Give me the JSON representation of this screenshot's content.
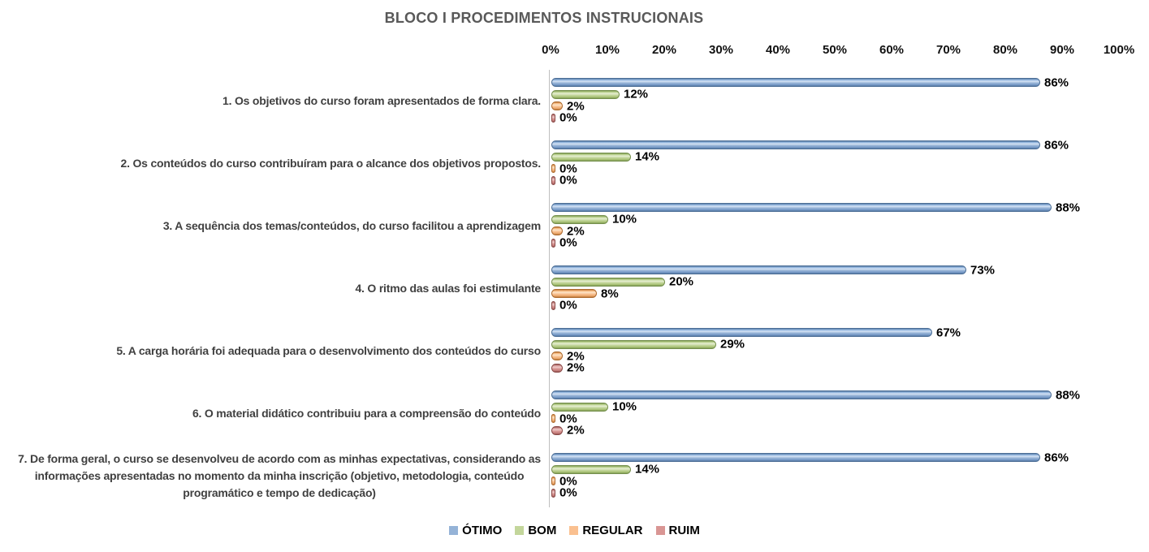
{
  "title": "BLOCO I PROCEDIMENTOS INSTRUCIONAIS",
  "chart_data": {
    "type": "bar",
    "orientation": "horizontal",
    "title": "BLOCO I PROCEDIMENTOS INSTRUCIONAIS",
    "xlabel": "",
    "ylabel": "",
    "xlim": [
      0,
      100
    ],
    "x_ticks": [
      "0%",
      "10%",
      "20%",
      "30%",
      "40%",
      "50%",
      "60%",
      "70%",
      "80%",
      "90%",
      "100%"
    ],
    "grid": false,
    "legend_position": "bottom",
    "value_suffix": "%",
    "categories": [
      "1. Os objetivos do curso foram apresentados de forma clara.",
      "2. Os conteúdos do curso contribuíram para o alcance dos objetivos propostos.",
      "3. A sequência dos temas/conteúdos, do curso facilitou a aprendizagem",
      "4. O ritmo das aulas foi estimulante",
      "5. A carga horária foi adequada para o desenvolvimento dos conteúdos do curso",
      "6. O material didático contribuiu para a compreensão do conteúdo",
      "7. De forma geral, o curso se desenvolveu de acordo com as minhas expectativas, considerando as\ninformações apresentadas no momento da minha inscrição (objetivo, metodologia, conteúdo\nprogramático e tempo de dedicação)"
    ],
    "series": [
      {
        "name": "ÓTIMO",
        "color": "#95B3D7",
        "values": [
          86,
          86,
          88,
          73,
          67,
          88,
          86
        ]
      },
      {
        "name": "BOM",
        "color": "#C3D69B",
        "values": [
          12,
          14,
          10,
          20,
          29,
          10,
          14
        ]
      },
      {
        "name": "REGULAR",
        "color": "#FAC090",
        "values": [
          2,
          0,
          2,
          8,
          2,
          0,
          0
        ]
      },
      {
        "name": "RUIM",
        "color": "#D99694",
        "values": [
          0,
          0,
          0,
          0,
          2,
          2,
          0
        ]
      }
    ]
  }
}
